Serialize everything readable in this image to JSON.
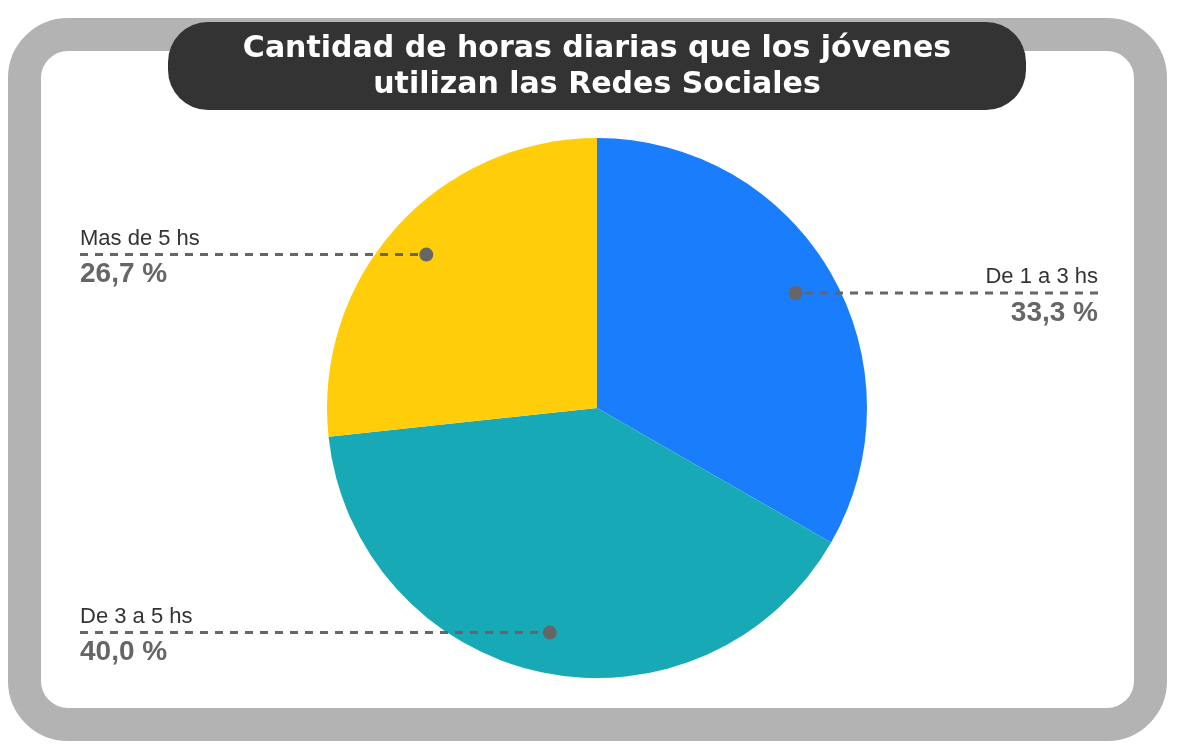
{
  "chart_data": {
    "type": "pie",
    "title": "Cantidad de horas diarias que los jóvenes utilizan las Redes Sociales",
    "categories": [
      "De 1 a 3 hs",
      "De 3 a 5 hs",
      "Mas de 5 hs"
    ],
    "values": [
      33.3,
      40.0,
      26.7
    ],
    "colors": [
      "#1a7dfc",
      "#17aab6",
      "#ffcd0a"
    ],
    "value_labels": [
      "33,3 %",
      "40,0 %",
      "26,7 %"
    ],
    "legend": false
  }
}
